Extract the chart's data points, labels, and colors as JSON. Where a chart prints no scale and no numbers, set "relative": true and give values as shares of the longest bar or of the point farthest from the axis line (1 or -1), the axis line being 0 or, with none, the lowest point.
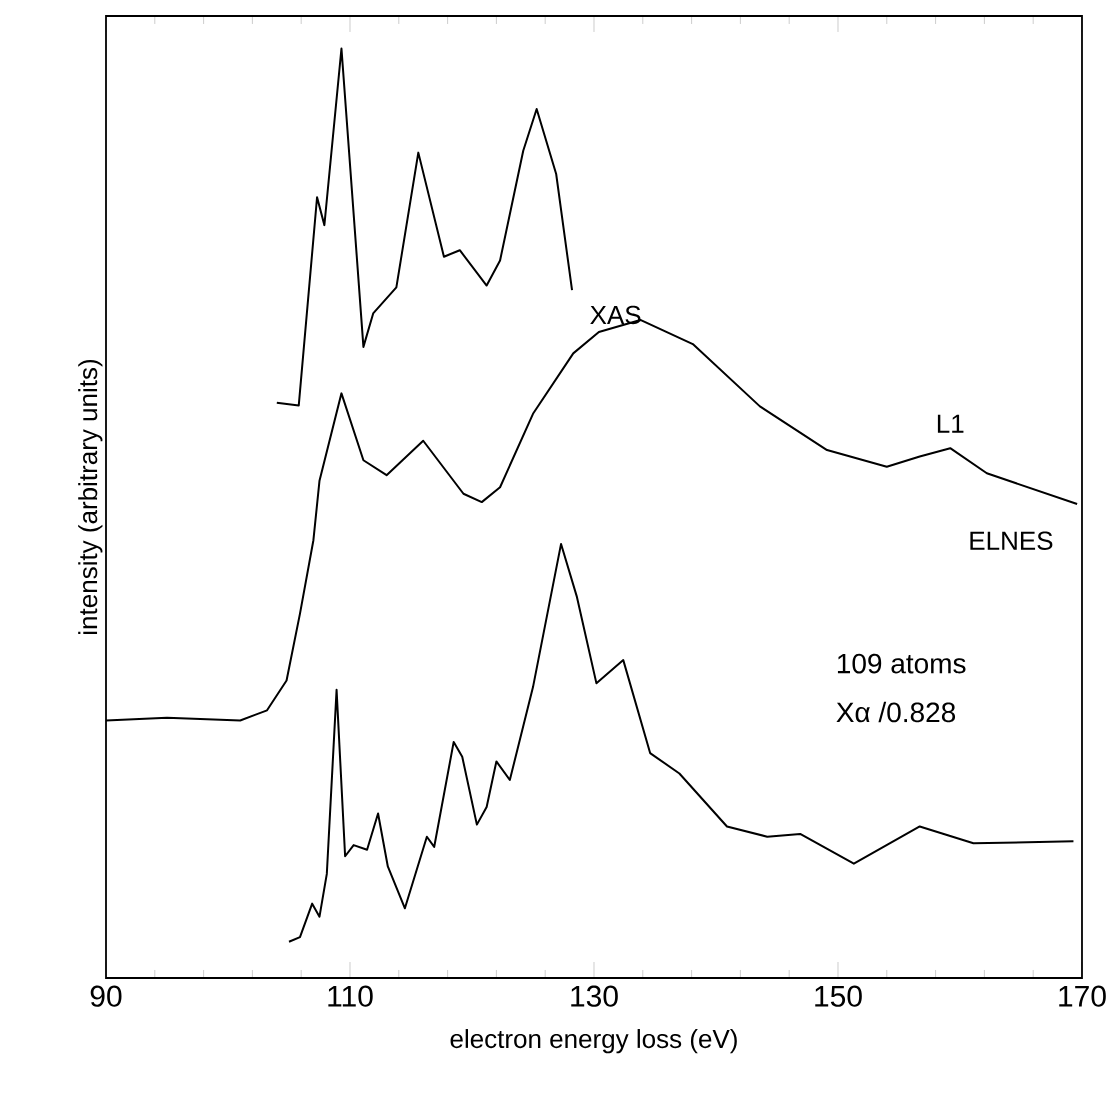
{
  "chart_data": {
    "type": "line",
    "relative": true,
    "xlabel": "electron energy loss (eV)",
    "ylabel": "intensity (arbitrary units)",
    "xlim": [
      90,
      170
    ],
    "xticks": [
      90,
      110,
      130,
      150,
      170
    ],
    "grid": false,
    "marker": "none",
    "line_style": "solid",
    "annotations": [
      {
        "text": "L1",
        "x": 159.2,
        "y": 0.57
      },
      "109 atoms",
      "Xα /0.828"
    ],
    "series": [
      {
        "name": "XAS",
        "color": "#000000",
        "x": [
          104.0,
          105.8,
          107.3,
          107.9,
          109.3,
          111.1,
          111.9,
          113.8,
          115.6,
          117.7,
          119.0,
          121.2,
          122.3,
          124.2,
          125.3,
          126.9,
          128.2
        ],
        "values": [
          0.619,
          0.616,
          0.84,
          0.81,
          1.0,
          0.679,
          0.715,
          0.743,
          0.888,
          0.776,
          0.783,
          0.745,
          0.772,
          0.89,
          0.935,
          0.865,
          0.74
        ]
      },
      {
        "name": "ELNES",
        "color": "#000000",
        "x": [
          90,
          95,
          101.0,
          103.2,
          104.8,
          105.9,
          107.0,
          107.5,
          109.3,
          111.1,
          113.0,
          116.0,
          119.3,
          120.8,
          122.3,
          125.0,
          128.3,
          130.4,
          133.8,
          138.1,
          143.6,
          149.1,
          154.0,
          156.7,
          159.2,
          162.2,
          169.6
        ],
        "values": [
          0.277,
          0.28,
          0.277,
          0.288,
          0.32,
          0.392,
          0.471,
          0.535,
          0.629,
          0.557,
          0.541,
          0.578,
          0.521,
          0.512,
          0.528,
          0.607,
          0.672,
          0.695,
          0.708,
          0.682,
          0.615,
          0.568,
          0.55,
          0.561,
          0.57,
          0.543,
          0.51
        ]
      },
      {
        "color": "#000000",
        "x": [
          105.0,
          105.9,
          106.9,
          107.5,
          108.1,
          108.9,
          109.6,
          110.3,
          111.4,
          112.3,
          113.1,
          114.5,
          116.3,
          116.9,
          118.5,
          119.2,
          120.4,
          121.2,
          122.0,
          123.1,
          125.0,
          127.3,
          128.6,
          130.2,
          132.4,
          134.6,
          137.0,
          140.9,
          144.2,
          146.9,
          151.3,
          156.7,
          161.1,
          169.3
        ],
        "values": [
          0.039,
          0.044,
          0.08,
          0.066,
          0.112,
          0.31,
          0.131,
          0.143,
          0.138,
          0.177,
          0.12,
          0.075,
          0.152,
          0.141,
          0.254,
          0.238,
          0.165,
          0.184,
          0.233,
          0.213,
          0.313,
          0.467,
          0.41,
          0.317,
          0.342,
          0.242,
          0.22,
          0.163,
          0.152,
          0.155,
          0.123,
          0.163,
          0.145,
          0.147
        ]
      }
    ]
  }
}
